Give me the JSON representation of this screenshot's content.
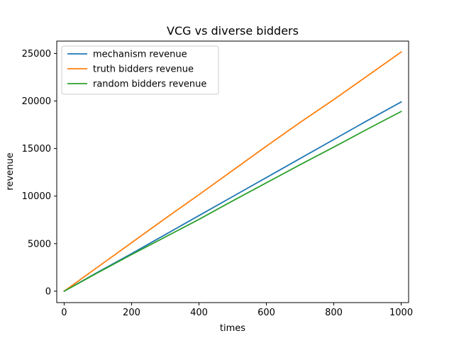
{
  "chart_data": {
    "type": "line",
    "title": "VCG vs diverse bidders",
    "xlabel": "times",
    "ylabel": "revenue",
    "xlim": [
      -22,
      1022
    ],
    "ylim": [
      -1200,
      26300
    ],
    "xticks": [
      0,
      200,
      400,
      600,
      800,
      1000
    ],
    "xtick_labels": [
      "0",
      "200",
      "400",
      "600",
      "800",
      "1000"
    ],
    "yticks": [
      0,
      5000,
      10000,
      15000,
      20000,
      25000
    ],
    "ytick_labels": [
      "0",
      "5000",
      "10000",
      "15000",
      "20000",
      "25000"
    ],
    "grid": false,
    "legend_position": "top-left",
    "x": [
      0,
      100,
      200,
      300,
      400,
      500,
      600,
      700,
      800,
      900,
      1000
    ],
    "series": [
      {
        "name": "mechanism revenue",
        "color": "#1f77b4",
        "values": [
          0,
          2000,
          3950,
          5950,
          7950,
          9950,
          11950,
          13950,
          15950,
          17950,
          19900
        ]
      },
      {
        "name": "truth bidders revenue",
        "color": "#ff7f0e",
        "values": [
          0,
          2550,
          5100,
          7650,
          10150,
          12700,
          15250,
          17750,
          20150,
          22650,
          25150
        ]
      },
      {
        "name": "random bidders revenue",
        "color": "#2ca02c",
        "values": [
          0,
          1950,
          3850,
          5700,
          7550,
          9500,
          11400,
          13300,
          15150,
          17050,
          18900
        ]
      }
    ]
  }
}
